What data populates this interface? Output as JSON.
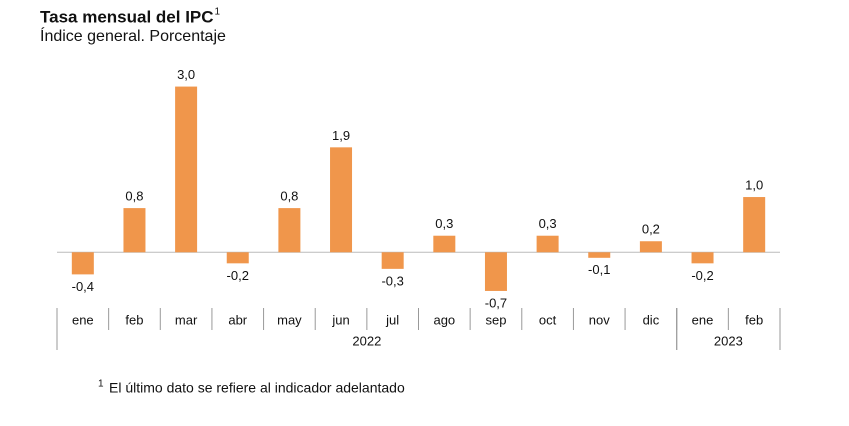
{
  "chart_data": {
    "type": "bar",
    "title": "Tasa mensual del IPC",
    "title_superscript": "1",
    "subtitle": "Índice general. Porcentaje",
    "categories": [
      "ene",
      "feb",
      "mar",
      "abr",
      "may",
      "jun",
      "jul",
      "ago",
      "sep",
      "oct",
      "nov",
      "dic",
      "ene",
      "feb"
    ],
    "groups": [
      {
        "label": "2022",
        "size": 12
      },
      {
        "label": "2023",
        "size": 2
      }
    ],
    "values": [
      -0.4,
      0.8,
      3.0,
      -0.2,
      0.8,
      1.9,
      -0.3,
      0.3,
      -0.7,
      0.3,
      -0.1,
      0.2,
      -0.2,
      1.0
    ],
    "value_labels": [
      "-0,4",
      "0,8",
      "3,0",
      "-0,2",
      "0,8",
      "1,9",
      "-0,3",
      "0,3",
      "-0,7",
      "0,3",
      "-0,1",
      "0,2",
      "-0,2",
      "1,0"
    ],
    "color": "#f0964b",
    "ylim": [
      -0.9,
      3.3
    ],
    "footnote_marker": "1",
    "footnote": "El último dato se refiere al indicador adelantado"
  }
}
